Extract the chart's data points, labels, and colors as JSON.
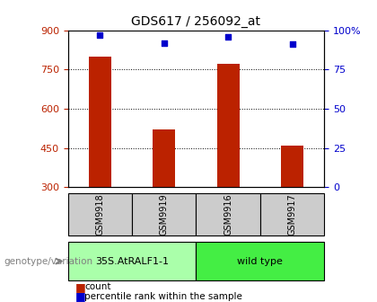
{
  "title": "GDS617 / 256092_at",
  "samples": [
    "GSM9918",
    "GSM9919",
    "GSM9916",
    "GSM9917"
  ],
  "bar_values": [
    800,
    520,
    770,
    460
  ],
  "percentile_values": [
    97,
    92,
    96,
    91
  ],
  "bar_color": "#bb2200",
  "percentile_color": "#0000cc",
  "ylim_left": [
    300,
    900
  ],
  "ylim_right": [
    0,
    100
  ],
  "yticks_left": [
    300,
    450,
    600,
    750,
    900
  ],
  "yticks_right": [
    0,
    25,
    50,
    75,
    100
  ],
  "ytick_labels_right": [
    "0",
    "25",
    "50",
    "75",
    "100%"
  ],
  "grid_values": [
    450,
    600,
    750
  ],
  "groups": [
    {
      "label": "35S.AtRALF1-1",
      "samples": [
        0,
        1
      ],
      "color": "#aaffaa"
    },
    {
      "label": "wild type",
      "samples": [
        2,
        3
      ],
      "color": "#44ee44"
    }
  ],
  "genotype_label": "genotype/variation",
  "legend_items": [
    {
      "color": "#bb2200",
      "label": "count"
    },
    {
      "color": "#0000cc",
      "label": "percentile rank within the sample"
    }
  ],
  "background_color": "#ffffff",
  "plot_bg_color": "#ffffff",
  "bar_width": 0.35,
  "sample_cell_color": "#cccccc",
  "sample_cell_edge_color": "#000000"
}
